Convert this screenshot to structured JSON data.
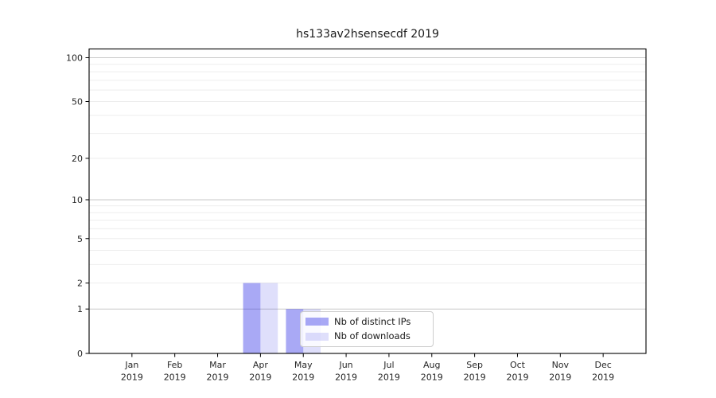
{
  "chart_data": {
    "type": "bar",
    "title": "hs133av2hsensecdf 2019",
    "x_categories": [
      "Jan",
      "Feb",
      "Mar",
      "Apr",
      "May",
      "Jun",
      "Jul",
      "Aug",
      "Sep",
      "Oct",
      "Nov",
      "Dec"
    ],
    "x_year": "2019",
    "series": [
      {
        "name": "Nb of distinct IPs",
        "color": "rgba(40,40,230,0.40)",
        "values": [
          0,
          0,
          0,
          2,
          1,
          0,
          0,
          0,
          0,
          0,
          0,
          0
        ]
      },
      {
        "name": "Nb of downloads",
        "color": "rgba(40,40,230,0.15)",
        "values": [
          0,
          0,
          0,
          2,
          1,
          0,
          0,
          0,
          0,
          0,
          0,
          0
        ]
      }
    ],
    "y_scale": "log1p",
    "y_ticks": [
      0,
      1,
      2,
      5,
      10,
      20,
      50,
      100
    ],
    "y_minor_ticks": [
      3,
      4,
      6,
      7,
      8,
      9,
      30,
      40,
      60,
      70,
      80,
      90
    ],
    "y_major_grid_ticks": [
      1,
      10,
      100
    ],
    "ylim": [
      0,
      110
    ],
    "grid": true,
    "legend_position": "lower-center",
    "colors": {
      "grid_major": "#c9c9c9",
      "grid_minor": "#ededed",
      "spine": "#000000",
      "tick_text": "#262626",
      "background": "#ffffff"
    }
  }
}
